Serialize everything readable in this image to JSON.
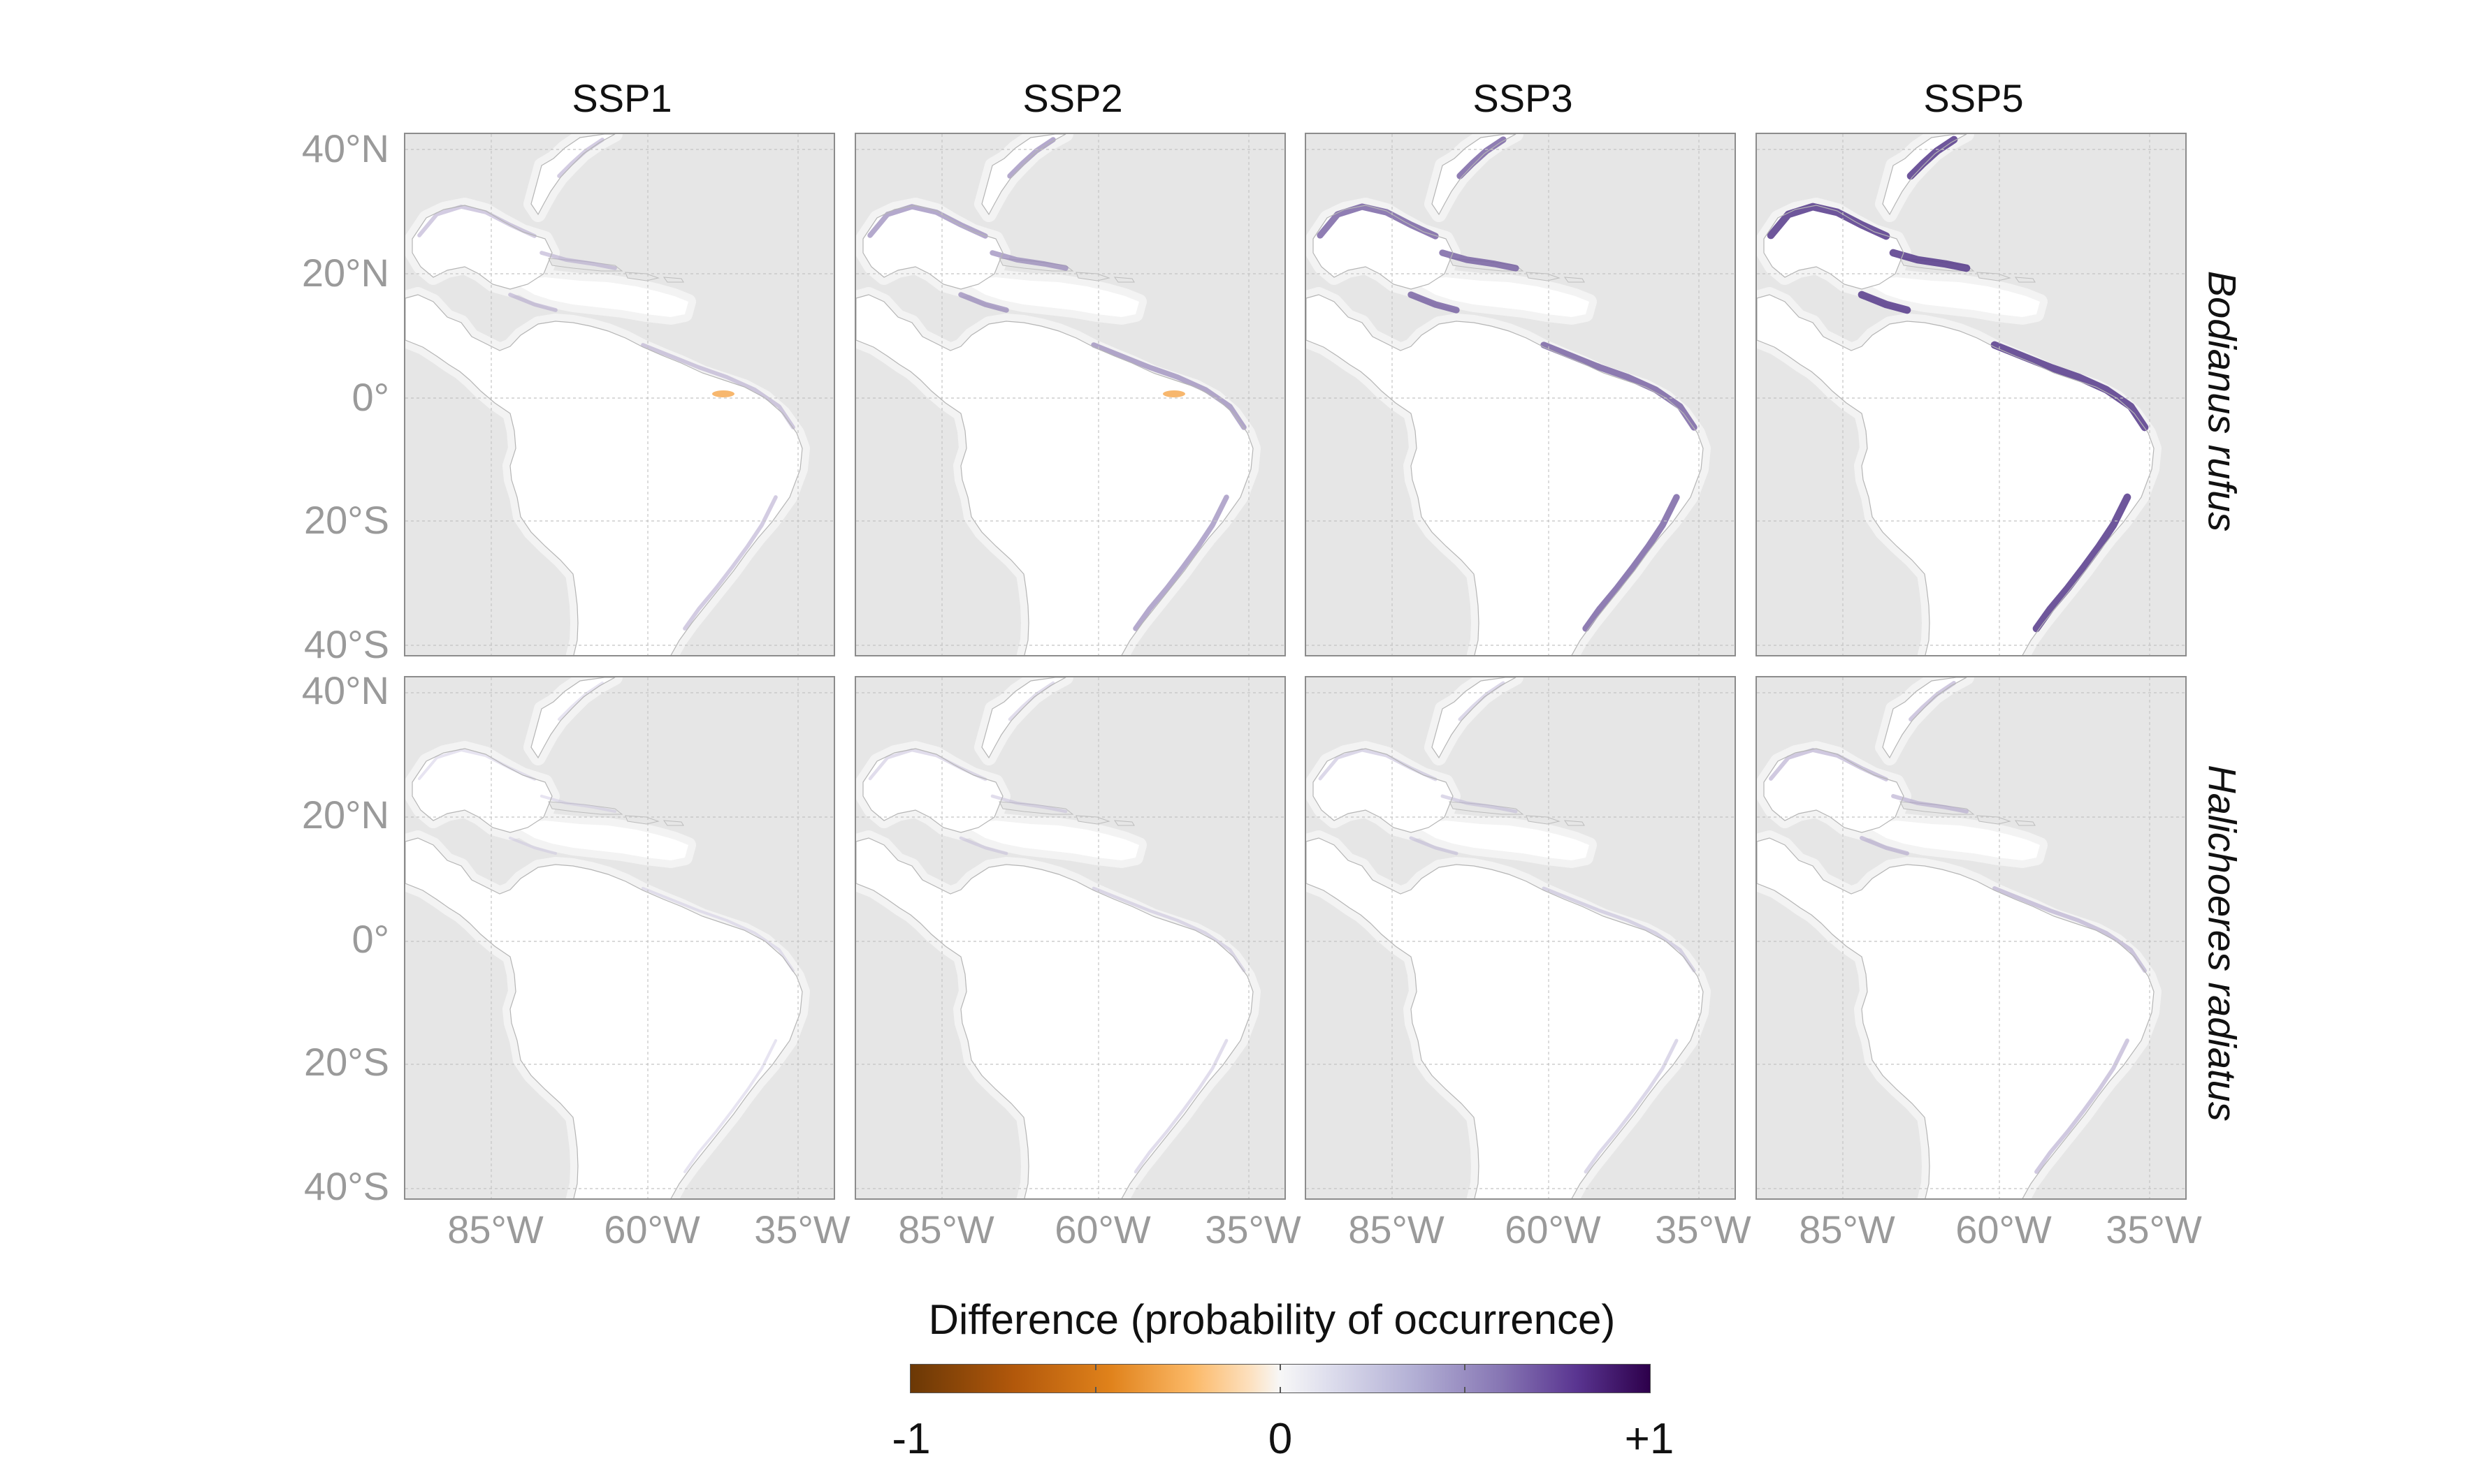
{
  "columns": [
    "SSP1",
    "SSP2",
    "SSP3",
    "SSP5"
  ],
  "rows": [
    "Bodianus rufus",
    "Halichoeres radiatus"
  ],
  "latitude_ticks": [
    "40°N",
    "20°N",
    "0°",
    "20°S",
    "40°S"
  ],
  "longitude_ticks": [
    "85°W",
    "60°W",
    "35°W"
  ],
  "legend": {
    "title": "Difference (probability of occurrence)",
    "min_label": "-1",
    "mid_label": "0",
    "max_label": "+1",
    "colors": {
      "negative": "#6b3806",
      "neutral": "#f7f7f7",
      "positive": "#2d004b"
    }
  },
  "panel_intensity": {
    "Bodianus rufus": [
      0.3,
      0.5,
      0.7,
      0.85
    ],
    "Halichoeres radiatus": [
      0.12,
      0.18,
      0.22,
      0.32
    ]
  },
  "colors": {
    "land": "#e6e6e6",
    "ocean": "#ffffff",
    "panel_border": "#8c8c8c",
    "grid": "#c4c4c4"
  }
}
